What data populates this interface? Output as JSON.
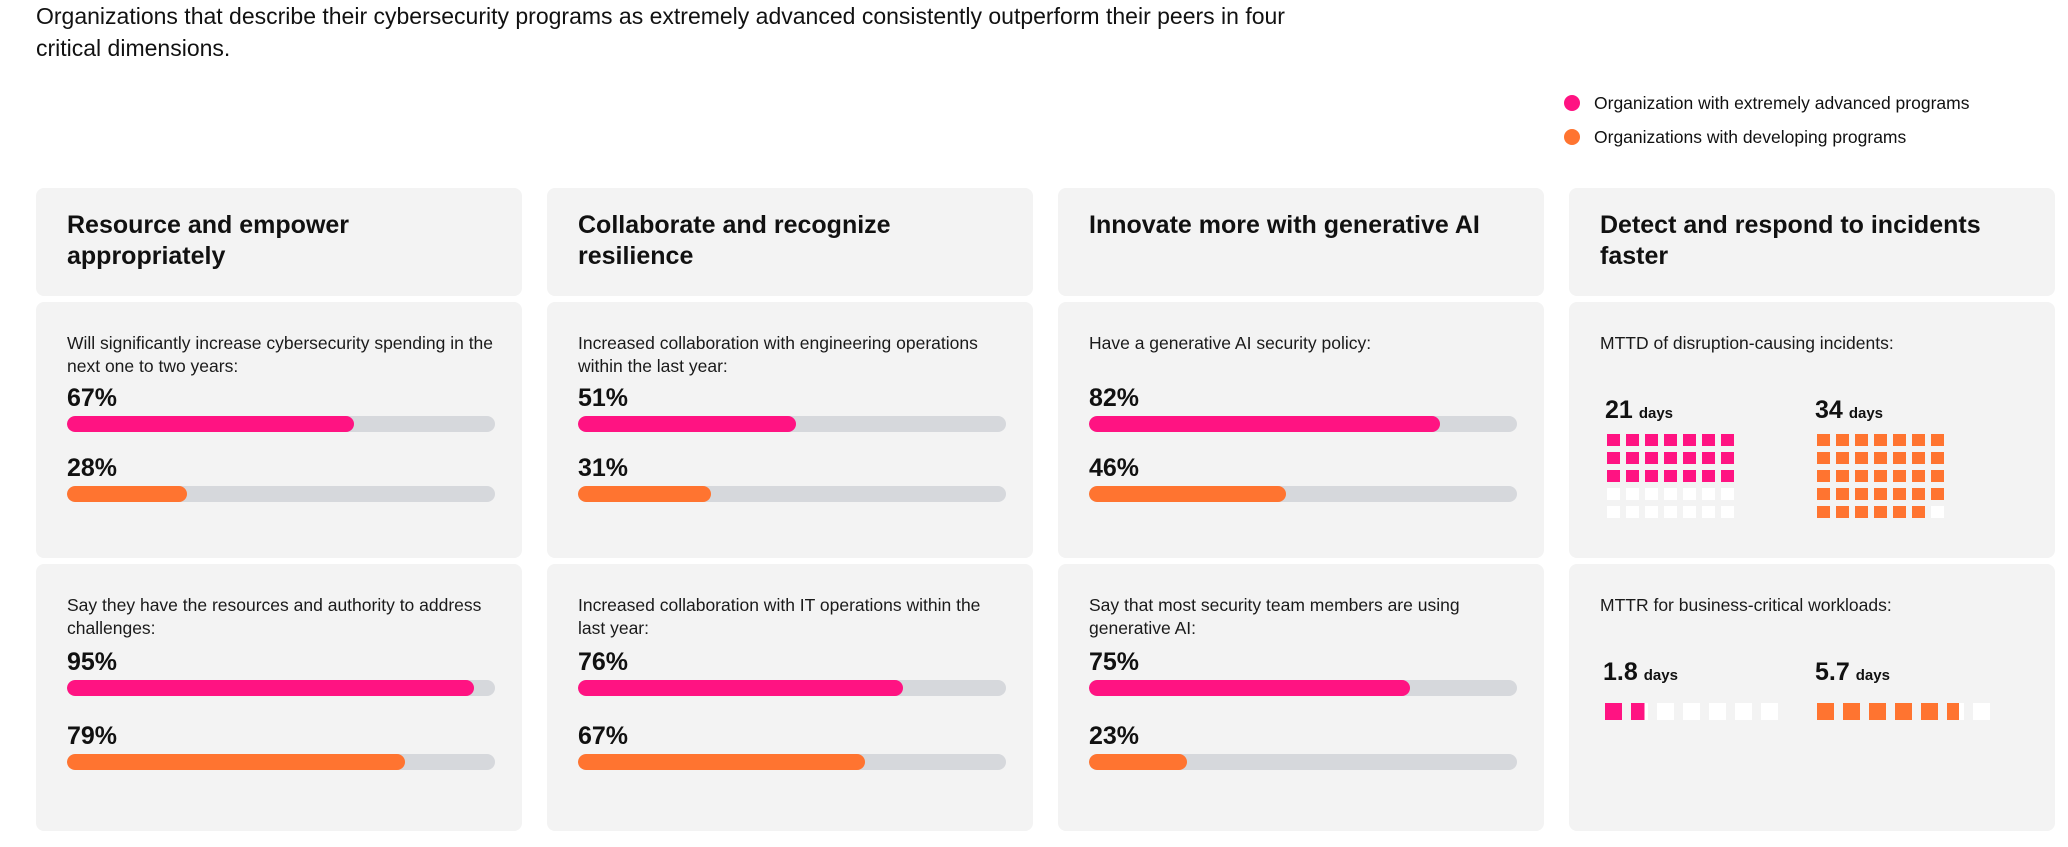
{
  "intro": "Organizations that describe their cybersecurity programs as extremely advanced consistently outperform their peers in four critical dimensions.",
  "legend": [
    {
      "label": "Organization with extremely advanced programs",
      "color": "#ff1382"
    },
    {
      "label": "Organizations with developing programs",
      "color": "#ff7430"
    }
  ],
  "colors": {
    "advanced": "#ff1382",
    "developing": "#ff7430",
    "track": "#d6d8dc"
  },
  "chart_data": {
    "type": "bar",
    "title": "Organizations that describe their cybersecurity programs as extremely advanced consistently outperform their peers in four critical dimensions.",
    "series_names": [
      "Organization with extremely advanced programs",
      "Organizations with developing programs"
    ],
    "columns": [
      {
        "title": "Resource and empower appropriately",
        "metrics": [
          {
            "label": "Will significantly increase cybersecurity spending in the next one to two years:",
            "advanced": 67,
            "developing": 28,
            "advanced_text": "67%",
            "developing_text": "28%"
          },
          {
            "label": "Say they have the resources and authority to address challenges:",
            "advanced": 95,
            "developing": 79,
            "advanced_text": "95%",
            "developing_text": "79%"
          }
        ]
      },
      {
        "title": "Collaborate and recognize resilience",
        "metrics": [
          {
            "label": "Increased collaboration with engineering operations within the last year:",
            "advanced": 51,
            "developing": 31,
            "advanced_text": "51%",
            "developing_text": "31%"
          },
          {
            "label": "Increased collaboration with IT operations within the last year:",
            "advanced": 76,
            "developing": 67,
            "advanced_text": "76%",
            "developing_text": "67%"
          }
        ]
      },
      {
        "title": "Innovate more with generative AI",
        "metrics": [
          {
            "label": "Have a generative AI security policy:",
            "advanced": 82,
            "developing": 46,
            "advanced_text": "82%",
            "developing_text": "46%"
          },
          {
            "label": "Say that most security team members are using generative AI:",
            "advanced": 75,
            "developing": 23,
            "advanced_text": "75%",
            "developing_text": "23%"
          }
        ]
      },
      {
        "title": "Detect and respond to incidents faster",
        "metrics": [
          {
            "label": "MTTD of disruption-causing incidents:",
            "advanced_days": 21,
            "developing_days": 34,
            "advanced_text": "21",
            "developing_text": "34",
            "unit": "days",
            "max_squares": 35
          },
          {
            "label": "MTTR for business-critical workloads:",
            "advanced_days": 1.8,
            "developing_days": 5.7,
            "advanced_text": "1.8",
            "developing_text": "5.7",
            "unit": "days",
            "max_squares": 7
          }
        ]
      }
    ]
  }
}
